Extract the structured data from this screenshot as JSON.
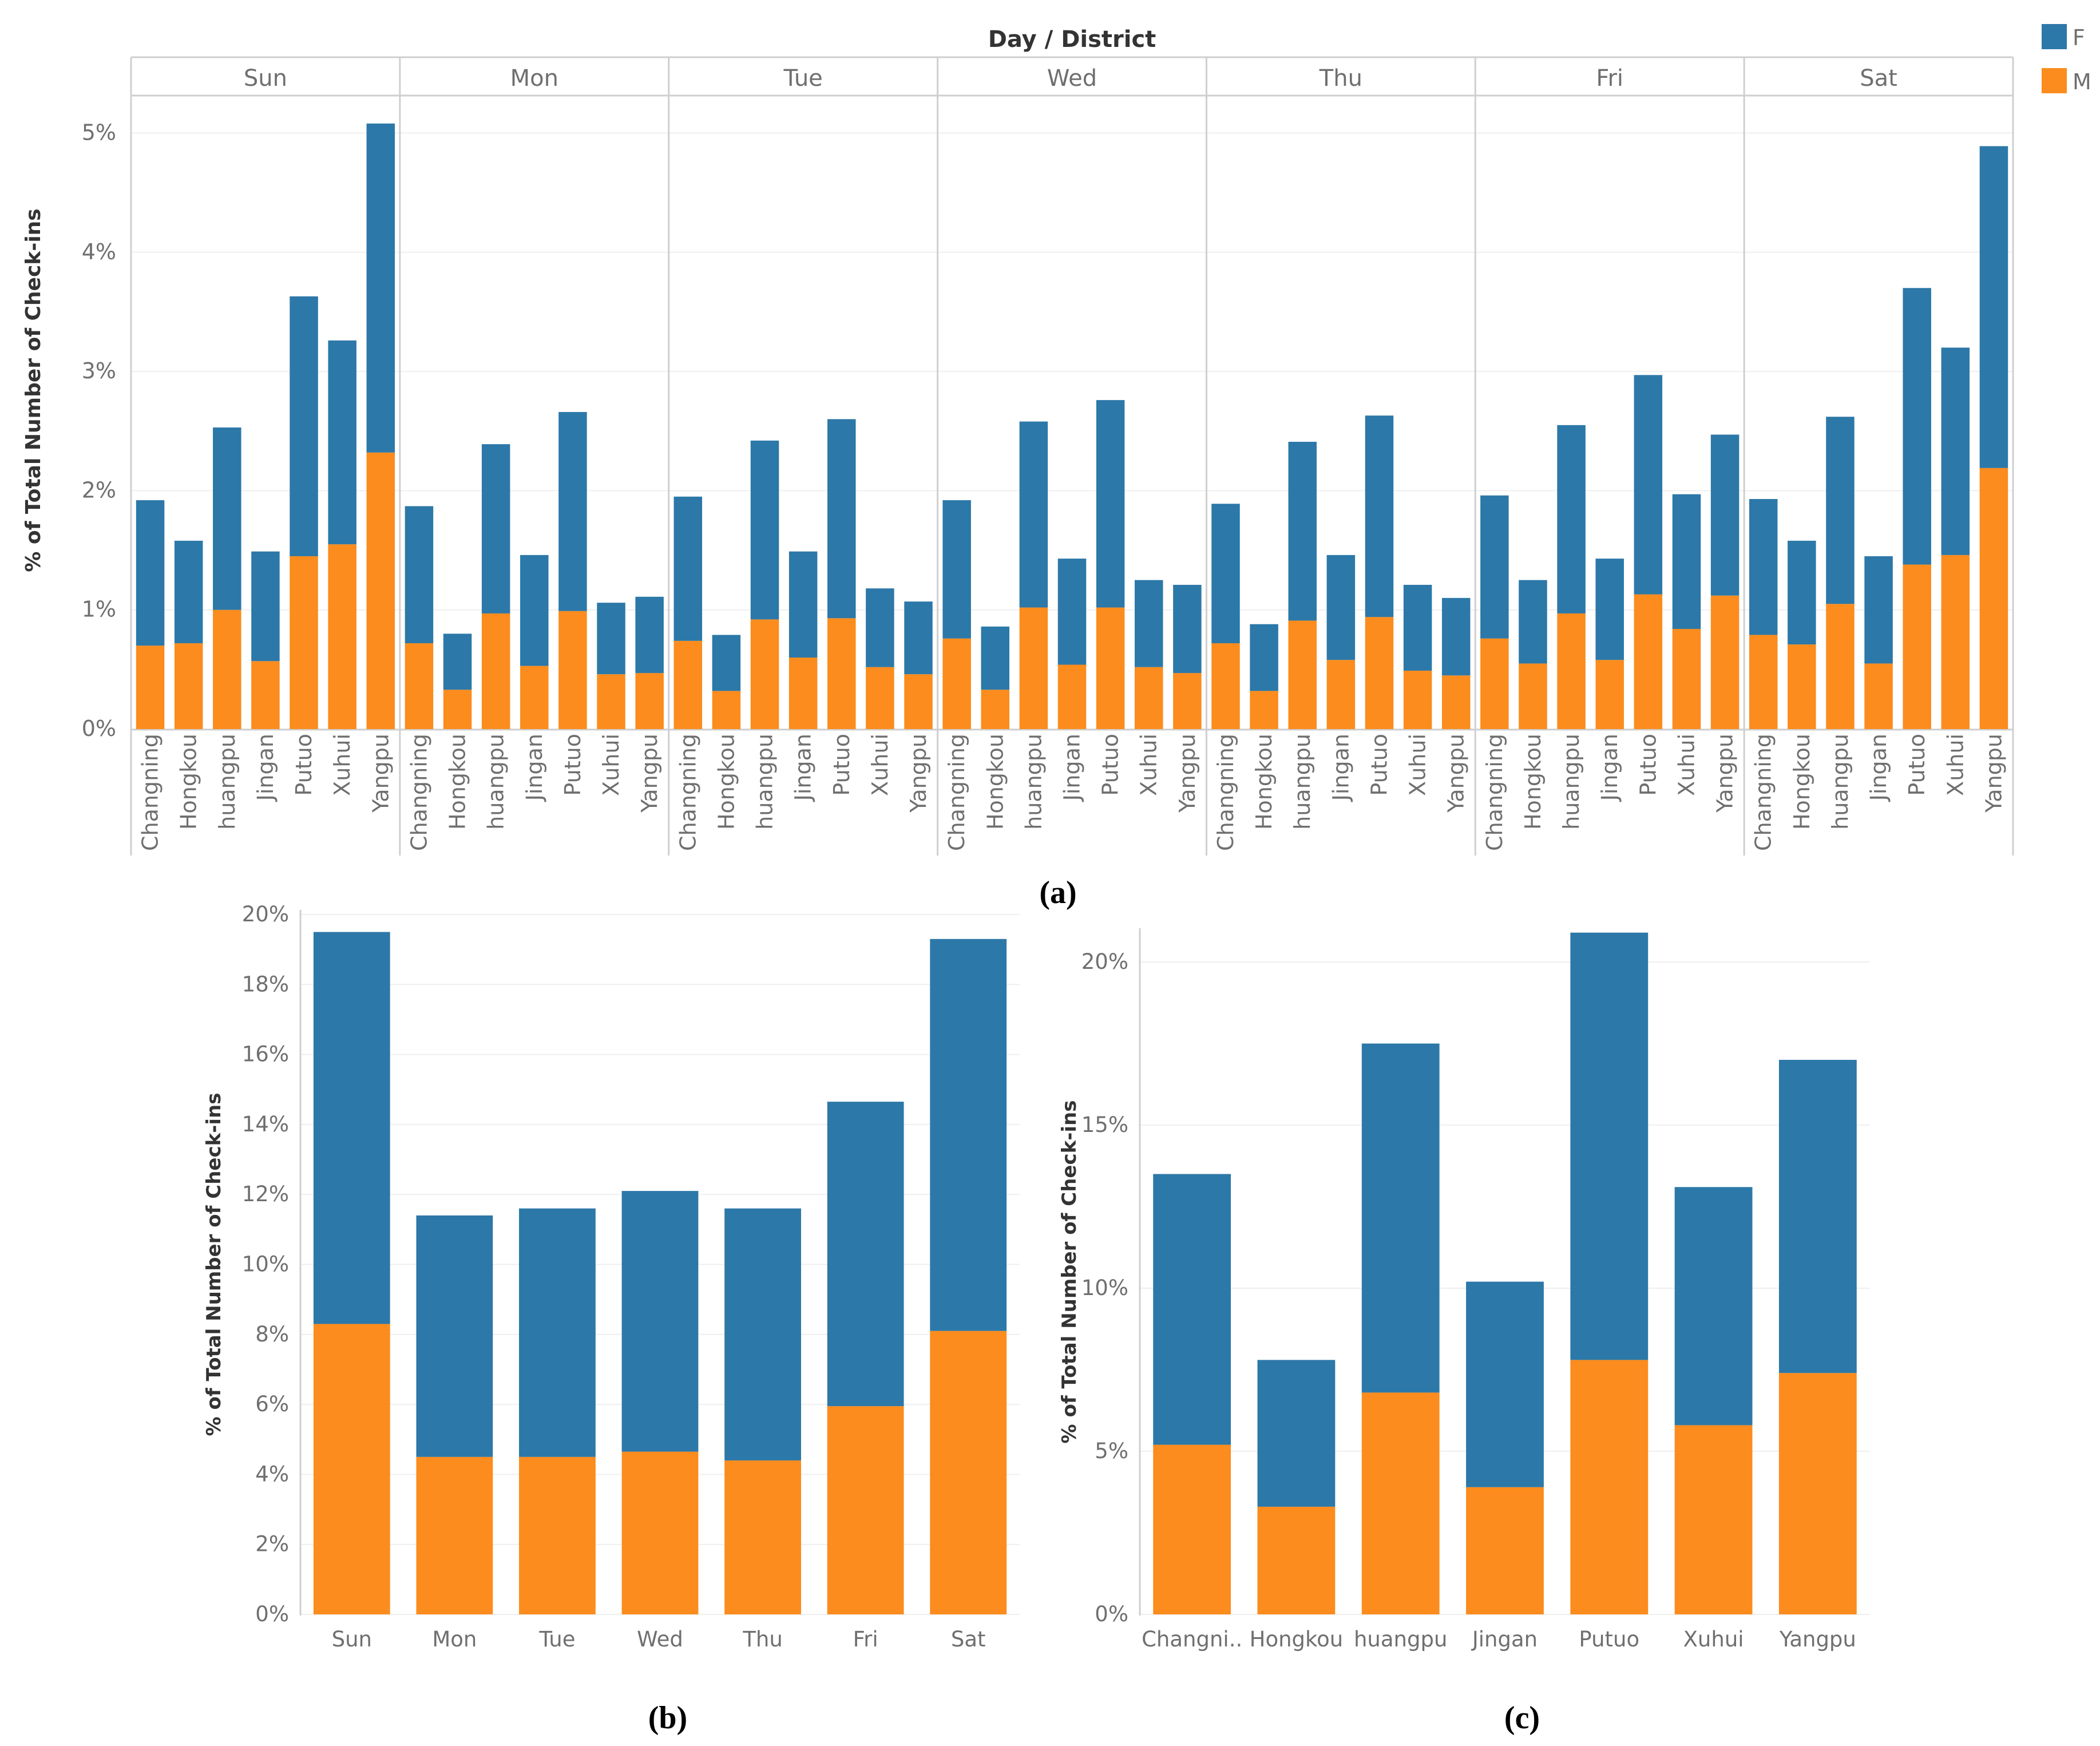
{
  "colors": {
    "F": "#2c78a8",
    "M": "#fb8c1d"
  },
  "legend": {
    "items": [
      {
        "label": "F",
        "color": "#2c78a8"
      },
      {
        "label": "M",
        "color": "#fb8c1d"
      }
    ]
  },
  "captions": {
    "a": "(a)",
    "b": "(b)",
    "c": "(c)"
  },
  "chart_data": [
    {
      "id": "a",
      "type": "bar",
      "stacked": true,
      "title": "Day / District",
      "ylabel": "% of Total Number of Check-ins",
      "ylim": [
        0,
        5.3
      ],
      "yticks": [
        0,
        1,
        2,
        3,
        4,
        5
      ],
      "ytick_labels": [
        "0%",
        "1%",
        "2%",
        "3%",
        "4%",
        "5%"
      ],
      "panels": [
        "Sun",
        "Mon",
        "Tue",
        "Wed",
        "Thu",
        "Fri",
        "Sat"
      ],
      "categories": [
        "Changning",
        "Hongkou",
        "huangpu",
        "Jingan",
        "Putuo",
        "Xuhui",
        "Yangpu"
      ],
      "series": [
        {
          "name": "M",
          "values": [
            [
              0.7,
              0.72,
              1.0,
              0.57,
              1.45,
              1.55,
              2.32
            ],
            [
              0.72,
              0.33,
              0.97,
              0.53,
              0.99,
              0.46,
              0.47
            ],
            [
              0.74,
              0.32,
              0.92,
              0.6,
              0.93,
              0.52,
              0.46
            ],
            [
              0.76,
              0.33,
              1.02,
              0.54,
              1.02,
              0.52,
              0.47
            ],
            [
              0.72,
              0.32,
              0.91,
              0.58,
              0.94,
              0.49,
              0.45
            ],
            [
              0.76,
              0.55,
              0.97,
              0.58,
              1.13,
              0.84,
              1.12
            ],
            [
              0.79,
              0.71,
              1.05,
              0.55,
              1.38,
              1.46,
              2.19
            ]
          ]
        },
        {
          "name": "F",
          "values": [
            [
              1.22,
              0.86,
              1.53,
              0.92,
              2.18,
              1.71,
              2.76
            ],
            [
              1.15,
              0.47,
              1.42,
              0.93,
              1.67,
              0.6,
              0.64
            ],
            [
              1.21,
              0.47,
              1.5,
              0.89,
              1.67,
              0.66,
              0.61
            ],
            [
              1.16,
              0.53,
              1.56,
              0.89,
              1.74,
              0.73,
              0.74
            ],
            [
              1.17,
              0.56,
              1.5,
              0.88,
              1.69,
              0.72,
              0.65
            ],
            [
              1.2,
              0.7,
              1.58,
              0.85,
              1.84,
              1.13,
              1.35
            ],
            [
              1.14,
              0.87,
              1.57,
              0.9,
              2.32,
              1.74,
              2.7
            ]
          ]
        }
      ]
    },
    {
      "id": "b",
      "type": "bar",
      "stacked": true,
      "ylabel": "% of Total Number of Check-ins",
      "ylim": [
        0,
        20
      ],
      "yticks": [
        0,
        2,
        4,
        6,
        8,
        10,
        12,
        14,
        16,
        18,
        20
      ],
      "ytick_labels": [
        "0%",
        "2%",
        "4%",
        "6%",
        "8%",
        "10%",
        "12%",
        "14%",
        "16%",
        "18%",
        "20%"
      ],
      "categories": [
        "Sun",
        "Mon",
        "Tue",
        "Wed",
        "Thu",
        "Fri",
        "Sat"
      ],
      "series": [
        {
          "name": "M",
          "values": [
            8.3,
            4.5,
            4.5,
            4.65,
            4.4,
            5.95,
            8.1
          ]
        },
        {
          "name": "F",
          "values": [
            11.2,
            6.9,
            7.1,
            7.45,
            7.2,
            8.7,
            11.2
          ]
        }
      ]
    },
    {
      "id": "c",
      "type": "bar",
      "stacked": true,
      "ylabel": "% of Total Number of Check-ins",
      "ylim": [
        0,
        21
      ],
      "yticks": [
        0,
        5,
        10,
        15,
        20
      ],
      "ytick_labels": [
        "0%",
        "5%",
        "10%",
        "15%",
        "20%"
      ],
      "categories": [
        "Changni..",
        "Hongkou",
        "huangpu",
        "Jingan",
        "Putuo",
        "Xuhui",
        "Yangpu"
      ],
      "series": [
        {
          "name": "M",
          "values": [
            5.2,
            3.3,
            6.8,
            3.9,
            7.8,
            5.8,
            7.4
          ]
        },
        {
          "name": "F",
          "values": [
            8.3,
            4.5,
            10.7,
            6.3,
            13.1,
            7.3,
            9.6
          ]
        }
      ]
    }
  ]
}
